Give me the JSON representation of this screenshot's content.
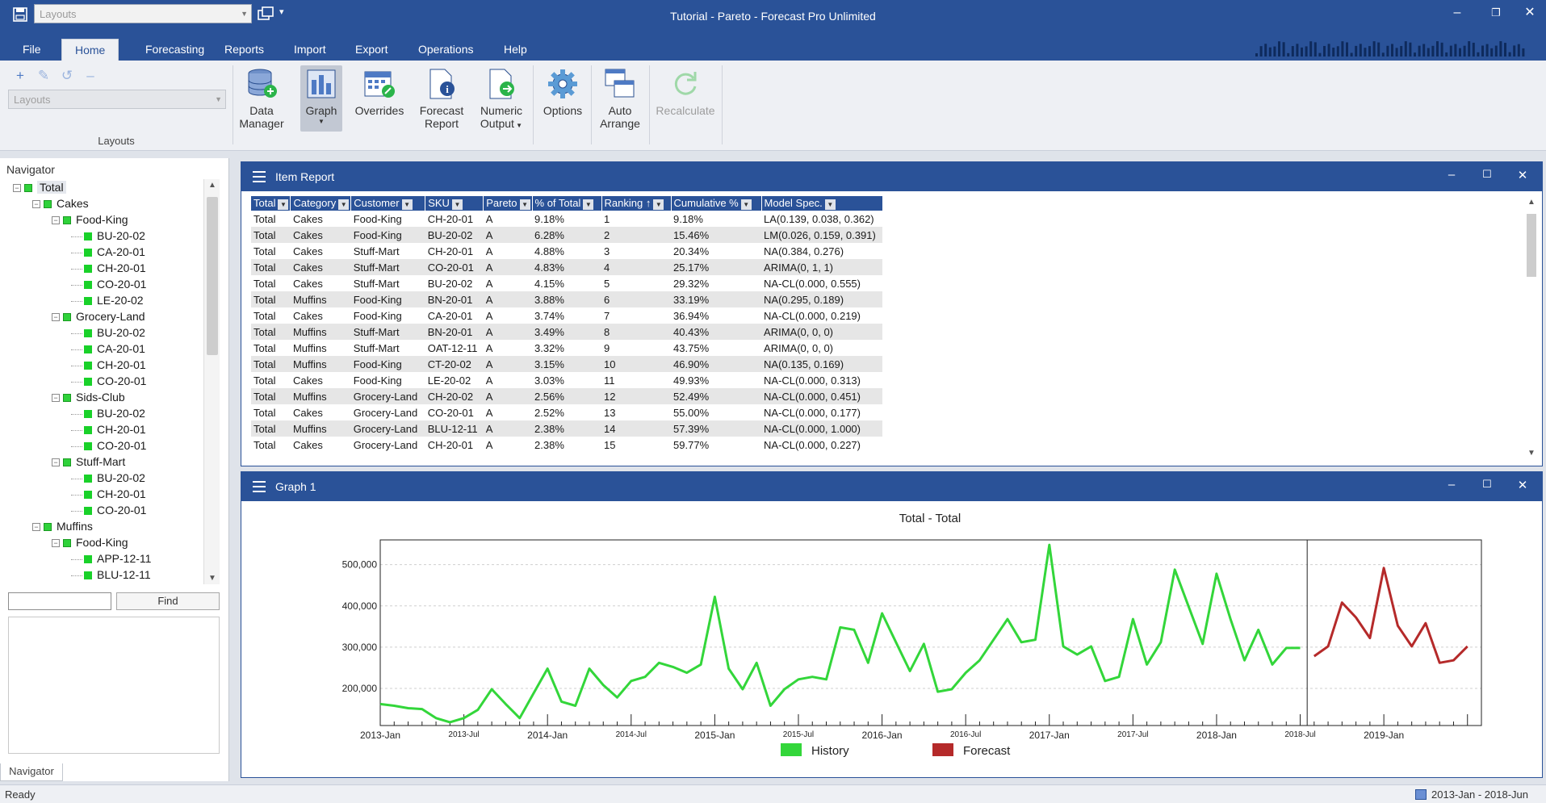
{
  "window": {
    "title": "Tutorial - Pareto - Forecast Pro Unlimited",
    "layouts_combo_placeholder": "Layouts"
  },
  "ribbon_tabs": [
    "File",
    "Home",
    "Forecasting",
    "Reports",
    "Import",
    "Export",
    "Operations",
    "Help"
  ],
  "active_tab": "Home",
  "ribbon": {
    "layouts_field_placeholder": "Layouts",
    "layouts_group_label": "Layouts",
    "buttons": [
      {
        "id": "data-manager",
        "label1": "Data",
        "label2": "Manager",
        "icon": "database-icon"
      },
      {
        "id": "graph",
        "label1": "Graph",
        "label2": "",
        "icon": "bar-chart-icon",
        "active": true,
        "dropdown": true
      },
      {
        "id": "overrides",
        "label1": "Overrides",
        "label2": "",
        "icon": "calendar-edit-icon"
      },
      {
        "id": "forecast-report",
        "label1": "Forecast",
        "label2": "Report",
        "icon": "document-info-icon"
      },
      {
        "id": "numeric-output",
        "label1": "Numeric",
        "label2": "Output",
        "icon": "document-arrow-icon",
        "dropdown": true
      },
      {
        "id": "options",
        "label1": "Options",
        "label2": "",
        "icon": "gear-icon"
      },
      {
        "id": "auto-arrange",
        "label1": "Auto",
        "label2": "Arrange",
        "icon": "windows-icon"
      },
      {
        "id": "recalculate",
        "label1": "Recalculate",
        "label2": "",
        "icon": "refresh-icon",
        "disabled": true
      }
    ]
  },
  "navigator": {
    "title": "Navigator",
    "tab_label": "Navigator",
    "find_button": "Find",
    "find_value": "",
    "tree": [
      {
        "label": "Total",
        "level": 0,
        "type": "root",
        "selected": true
      },
      {
        "label": "Cakes",
        "level": 1,
        "type": "group"
      },
      {
        "label": "Food-King",
        "level": 2,
        "type": "group"
      },
      {
        "label": "BU-20-02",
        "level": 3,
        "type": "leaf"
      },
      {
        "label": "CA-20-01",
        "level": 3,
        "type": "leaf"
      },
      {
        "label": "CH-20-01",
        "level": 3,
        "type": "leaf"
      },
      {
        "label": "CO-20-01",
        "level": 3,
        "type": "leaf"
      },
      {
        "label": "LE-20-02",
        "level": 3,
        "type": "leaf"
      },
      {
        "label": "Grocery-Land",
        "level": 2,
        "type": "group"
      },
      {
        "label": "BU-20-02",
        "level": 3,
        "type": "leaf"
      },
      {
        "label": "CA-20-01",
        "level": 3,
        "type": "leaf"
      },
      {
        "label": "CH-20-01",
        "level": 3,
        "type": "leaf"
      },
      {
        "label": "CO-20-01",
        "level": 3,
        "type": "leaf"
      },
      {
        "label": "Sids-Club",
        "level": 2,
        "type": "group"
      },
      {
        "label": "BU-20-02",
        "level": 3,
        "type": "leaf"
      },
      {
        "label": "CH-20-01",
        "level": 3,
        "type": "leaf"
      },
      {
        "label": "CO-20-01",
        "level": 3,
        "type": "leaf"
      },
      {
        "label": "Stuff-Mart",
        "level": 2,
        "type": "group"
      },
      {
        "label": "BU-20-02",
        "level": 3,
        "type": "leaf"
      },
      {
        "label": "CH-20-01",
        "level": 3,
        "type": "leaf"
      },
      {
        "label": "CO-20-01",
        "level": 3,
        "type": "leaf"
      },
      {
        "label": "Muffins",
        "level": 1,
        "type": "group"
      },
      {
        "label": "Food-King",
        "level": 2,
        "type": "group"
      },
      {
        "label": "APP-12-11",
        "level": 3,
        "type": "leaf"
      },
      {
        "label": "BLU-12-11",
        "level": 3,
        "type": "leaf"
      }
    ]
  },
  "item_report": {
    "title": "Item Report",
    "columns": [
      "Total",
      "Category",
      "Customer",
      "SKU",
      "Pareto",
      "% of Total",
      "Ranking ↑",
      "Cumulative %",
      "Model Spec."
    ],
    "rows": [
      [
        "Total",
        "Cakes",
        "Food-King",
        "CH-20-01",
        "A",
        "9.18%",
        "1",
        "9.18%",
        "LA(0.139, 0.038, 0.362)"
      ],
      [
        "Total",
        "Cakes",
        "Food-King",
        "BU-20-02",
        "A",
        "6.28%",
        "2",
        "15.46%",
        "LM(0.026, 0.159, 0.391)"
      ],
      [
        "Total",
        "Cakes",
        "Stuff-Mart",
        "CH-20-01",
        "A",
        "4.88%",
        "3",
        "20.34%",
        "NA(0.384, 0.276)"
      ],
      [
        "Total",
        "Cakes",
        "Stuff-Mart",
        "CO-20-01",
        "A",
        "4.83%",
        "4",
        "25.17%",
        "ARIMA(0, 1, 1)"
      ],
      [
        "Total",
        "Cakes",
        "Stuff-Mart",
        "BU-20-02",
        "A",
        "4.15%",
        "5",
        "29.32%",
        "NA-CL(0.000, 0.555)"
      ],
      [
        "Total",
        "Muffins",
        "Food-King",
        "BN-20-01",
        "A",
        "3.88%",
        "6",
        "33.19%",
        "NA(0.295, 0.189)"
      ],
      [
        "Total",
        "Cakes",
        "Food-King",
        "CA-20-01",
        "A",
        "3.74%",
        "7",
        "36.94%",
        "NA-CL(0.000, 0.219)"
      ],
      [
        "Total",
        "Muffins",
        "Stuff-Mart",
        "BN-20-01",
        "A",
        "3.49%",
        "8",
        "40.43%",
        "ARIMA(0, 0, 0)"
      ],
      [
        "Total",
        "Muffins",
        "Stuff-Mart",
        "OAT-12-11",
        "A",
        "3.32%",
        "9",
        "43.75%",
        "ARIMA(0, 0, 0)"
      ],
      [
        "Total",
        "Muffins",
        "Food-King",
        "CT-20-02",
        "A",
        "3.15%",
        "10",
        "46.90%",
        "NA(0.135, 0.169)"
      ],
      [
        "Total",
        "Cakes",
        "Food-King",
        "LE-20-02",
        "A",
        "3.03%",
        "11",
        "49.93%",
        "NA-CL(0.000, 0.313)"
      ],
      [
        "Total",
        "Muffins",
        "Grocery-Land",
        "CH-20-02",
        "A",
        "2.56%",
        "12",
        "52.49%",
        "NA-CL(0.000, 0.451)"
      ],
      [
        "Total",
        "Cakes",
        "Grocery-Land",
        "CO-20-01",
        "A",
        "2.52%",
        "13",
        "55.00%",
        "NA-CL(0.000, 0.177)"
      ],
      [
        "Total",
        "Muffins",
        "Grocery-Land",
        "BLU-12-11",
        "A",
        "2.38%",
        "14",
        "57.39%",
        "NA-CL(0.000, 1.000)"
      ],
      [
        "Total",
        "Cakes",
        "Grocery-Land",
        "CH-20-01",
        "A",
        "2.38%",
        "15",
        "59.77%",
        "NA-CL(0.000, 0.227)"
      ]
    ]
  },
  "graph_panel": {
    "title": "Graph 1"
  },
  "chart_data": {
    "type": "line",
    "title": "Total - Total",
    "xlabel": "",
    "ylabel": "",
    "ylim": [
      110000,
      560000
    ],
    "y_ticks": [
      "200,000",
      "300,000",
      "400,000",
      "500,000"
    ],
    "y_tick_values": [
      200000,
      300000,
      400000,
      500000
    ],
    "x_ticks_major": [
      "2013-Jan",
      "2014-Jan",
      "2015-Jan",
      "2016-Jan",
      "2017-Jan",
      "2018-Jan",
      "2019-Jan"
    ],
    "x_ticks_minor": [
      "2013-Jul",
      "2014-Jul",
      "2015-Jul",
      "2016-Jul",
      "2017-Jul",
      "2018-Jul"
    ],
    "grid": true,
    "legend_position": "bottom",
    "series": [
      {
        "name": "History",
        "color": "#33d63a",
        "x_start": "2013-Jan",
        "values": [
          162000,
          158000,
          152000,
          150000,
          128000,
          118000,
          128000,
          148000,
          198000,
          162000,
          128000,
          188000,
          248000,
          168000,
          158000,
          248000,
          208000,
          178000,
          218000,
          228000,
          262000,
          252000,
          238000,
          258000,
          422000,
          248000,
          198000,
          262000,
          158000,
          198000,
          222000,
          228000,
          222000,
          348000,
          342000,
          262000,
          382000,
          312000,
          242000,
          308000,
          192000,
          198000,
          238000,
          268000,
          318000,
          368000,
          312000,
          318000,
          548000,
          302000,
          282000,
          302000,
          218000,
          228000,
          368000,
          258000,
          312000,
          488000,
          398000,
          308000,
          478000,
          368000,
          268000,
          342000,
          258000,
          298000,
          298000
        ]
      },
      {
        "name": "Forecast",
        "color": "#b52a2a",
        "x_start": "2018-Aug",
        "values": [
          278000,
          302000,
          408000,
          372000,
          322000,
          492000,
          352000,
          302000,
          358000,
          262000,
          268000,
          302000
        ]
      }
    ]
  },
  "status": {
    "text": "Ready",
    "date_range": "2013-Jan - 2018-Jun"
  }
}
